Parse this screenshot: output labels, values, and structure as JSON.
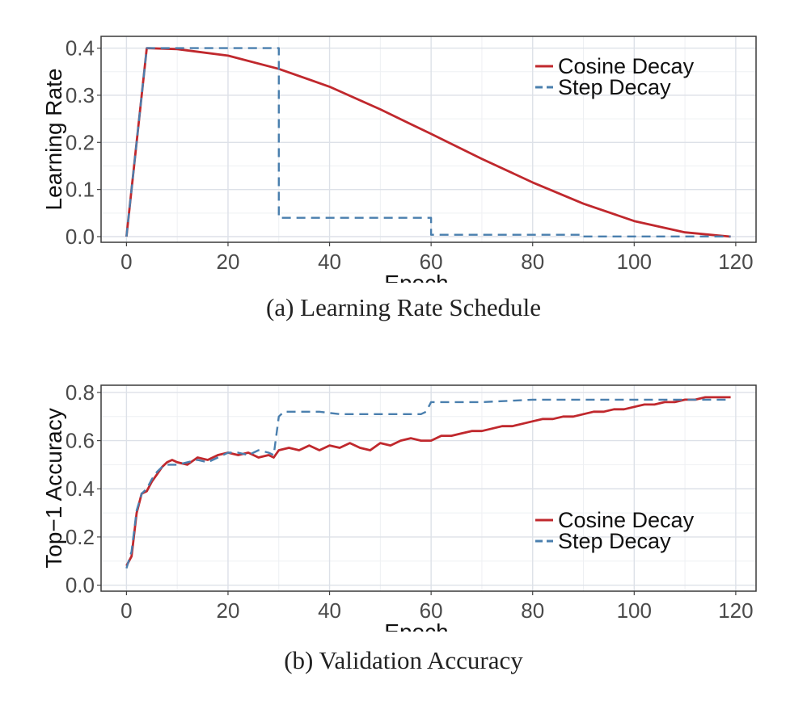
{
  "chart_data": [
    {
      "type": "line",
      "caption": "(a) Learning Rate Schedule",
      "xlabel": "Epoch",
      "ylabel": "Learning Rate",
      "xlim": [
        -5,
        124
      ],
      "ylim": [
        -0.012,
        0.425
      ],
      "xticks": [
        0,
        20,
        40,
        60,
        80,
        100,
        120
      ],
      "xtick_labels": [
        "0",
        "20",
        "40",
        "60",
        "80",
        "100",
        "120"
      ],
      "yticks": [
        0.0,
        0.1,
        0.2,
        0.3,
        0.4
      ],
      "ytick_labels": [
        "0.0",
        "0.1",
        "0.2",
        "0.3",
        "0.4"
      ],
      "grid": true,
      "legend_position": "top-right",
      "series": [
        {
          "name": "Cosine Decay",
          "color": "#c0282d",
          "style": "solid",
          "x": [
            0,
            4,
            10,
            20,
            30,
            40,
            50,
            60,
            70,
            80,
            90,
            100,
            110,
            119
          ],
          "y": [
            0.0,
            0.4,
            0.398,
            0.384,
            0.356,
            0.318,
            0.27,
            0.218,
            0.165,
            0.115,
            0.07,
            0.033,
            0.009,
            0.0
          ]
        },
        {
          "name": "Step Decay",
          "color": "#4a7fae",
          "style": "dashed",
          "x": [
            0,
            4,
            30,
            30,
            60,
            60,
            90,
            90,
            119
          ],
          "y": [
            0.0,
            0.4,
            0.4,
            0.04,
            0.04,
            0.004,
            0.004,
            0.0004,
            0.0004
          ]
        }
      ]
    },
    {
      "type": "line",
      "caption": "(b) Validation Accuracy",
      "xlabel": "Epoch",
      "ylabel": "Top−1 Accuracy",
      "xlim": [
        -5,
        124
      ],
      "ylim": [
        -0.025,
        0.83
      ],
      "xticks": [
        0,
        20,
        40,
        60,
        80,
        100,
        120
      ],
      "xtick_labels": [
        "0",
        "20",
        "40",
        "60",
        "80",
        "100",
        "120"
      ],
      "yticks": [
        0.0,
        0.2,
        0.4,
        0.6,
        0.8
      ],
      "ytick_labels": [
        "0.0",
        "0.2",
        "0.4",
        "0.6",
        "0.8"
      ],
      "grid": true,
      "legend_position": "bottom-right",
      "series": [
        {
          "name": "Cosine Decay",
          "color": "#c0282d",
          "style": "solid",
          "x": [
            0,
            1,
            2,
            3,
            4,
            5,
            6,
            7,
            8,
            9,
            10,
            12,
            14,
            16,
            18,
            20,
            22,
            24,
            26,
            28,
            29,
            30,
            32,
            34,
            36,
            38,
            40,
            42,
            44,
            46,
            48,
            50,
            52,
            54,
            56,
            58,
            60,
            62,
            64,
            66,
            68,
            70,
            72,
            74,
            76,
            78,
            80,
            82,
            84,
            86,
            88,
            90,
            92,
            94,
            96,
            98,
            100,
            102,
            104,
            106,
            108,
            110,
            112,
            114,
            116,
            119
          ],
          "y": [
            0.08,
            0.12,
            0.3,
            0.38,
            0.39,
            0.43,
            0.46,
            0.49,
            0.51,
            0.52,
            0.51,
            0.5,
            0.53,
            0.52,
            0.54,
            0.55,
            0.54,
            0.55,
            0.53,
            0.54,
            0.53,
            0.56,
            0.57,
            0.56,
            0.58,
            0.56,
            0.58,
            0.57,
            0.59,
            0.57,
            0.56,
            0.59,
            0.58,
            0.6,
            0.61,
            0.6,
            0.6,
            0.62,
            0.62,
            0.63,
            0.64,
            0.64,
            0.65,
            0.66,
            0.66,
            0.67,
            0.68,
            0.69,
            0.69,
            0.7,
            0.7,
            0.71,
            0.72,
            0.72,
            0.73,
            0.73,
            0.74,
            0.75,
            0.75,
            0.76,
            0.76,
            0.77,
            0.77,
            0.78,
            0.78,
            0.78
          ]
        },
        {
          "name": "Step Decay",
          "color": "#4a7fae",
          "style": "dashed",
          "x": [
            0,
            1,
            2,
            3,
            4,
            5,
            6,
            7,
            8,
            10,
            12,
            14,
            16,
            18,
            20,
            22,
            24,
            26,
            28,
            29,
            30,
            31,
            34,
            38,
            42,
            46,
            50,
            54,
            58,
            59,
            60,
            62,
            70,
            80,
            90,
            100,
            110,
            119
          ],
          "y": [
            0.07,
            0.14,
            0.31,
            0.38,
            0.4,
            0.44,
            0.47,
            0.49,
            0.5,
            0.5,
            0.51,
            0.52,
            0.51,
            0.53,
            0.55,
            0.55,
            0.54,
            0.56,
            0.55,
            0.54,
            0.7,
            0.72,
            0.72,
            0.72,
            0.71,
            0.71,
            0.71,
            0.71,
            0.71,
            0.72,
            0.76,
            0.76,
            0.76,
            0.77,
            0.77,
            0.77,
            0.77,
            0.77
          ]
        }
      ]
    }
  ]
}
